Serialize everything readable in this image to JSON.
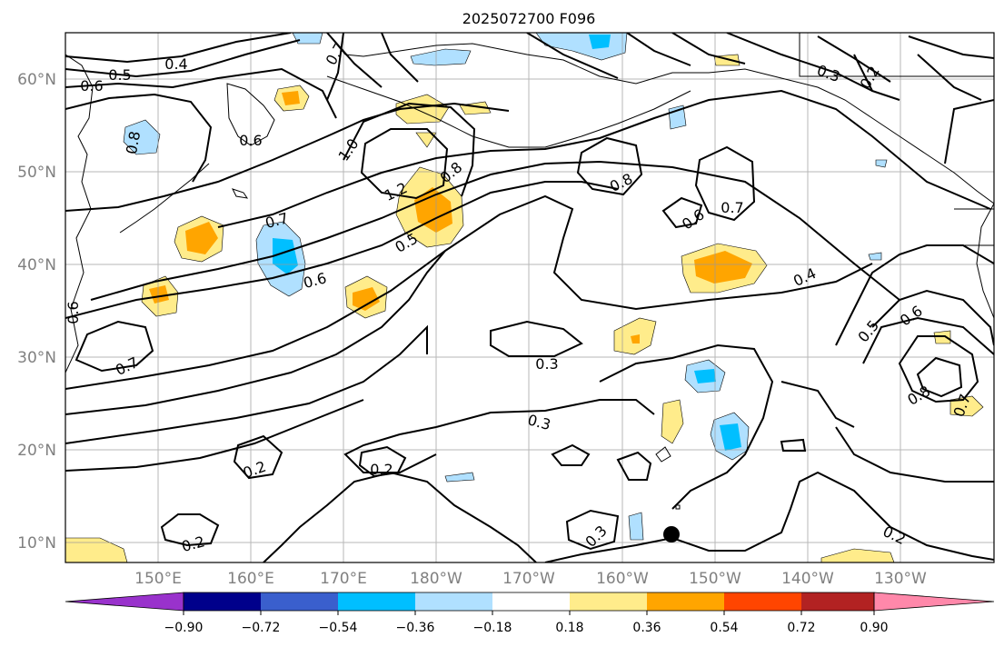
{
  "title": "2025072700 F096",
  "map": {
    "lat_labels": [
      "60°N",
      "50°N",
      "40°N",
      "30°N",
      "20°N",
      "10°N"
    ],
    "lon_labels": [
      "150°E",
      "160°E",
      "170°E",
      "180°W",
      "170°W",
      "160°W",
      "150°W",
      "140°W",
      "130°W"
    ],
    "contour_labels": [
      "0.4",
      "0.5",
      "0.6",
      "0.7",
      "0.6",
      "0.8",
      "1.0",
      "1.2",
      "0.8",
      "0.7",
      "0.5",
      "0.6",
      "0.8",
      "0.6",
      "0.7",
      "0.3",
      "0.2",
      "0.4",
      "0.5",
      "0.6",
      "0.8",
      "0.7",
      "0.6",
      "0.7",
      "0.3",
      "0.3",
      "0.2",
      "0.2",
      "0.2",
      "0.3",
      "0.2"
    ],
    "marker": "black-dot"
  },
  "colorbar": {
    "tick_labels": [
      "−0.90",
      "−0.72",
      "−0.54",
      "−0.36",
      "−0.18",
      "0.18",
      "0.36",
      "0.54",
      "0.72",
      "0.90"
    ],
    "colors": [
      "#9932cc",
      "#00008b",
      "#3a5fcd",
      "#00bfff",
      "#b0e0ff",
      "#ffffff",
      "#ffec8b",
      "#ffa500",
      "#ff4500",
      "#b22222",
      "#ff88aa"
    ]
  }
}
